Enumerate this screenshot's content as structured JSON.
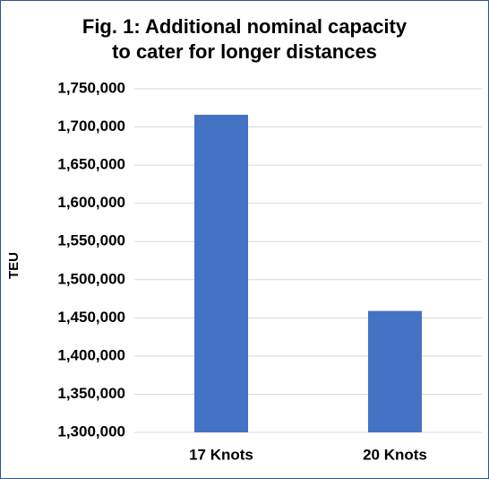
{
  "chart_data": {
    "type": "bar",
    "title": [
      "Fig. 1: Additional nominal capacity",
      "to cater for longer distances"
    ],
    "y_label": "TEU",
    "categories": [
      "17 Knots",
      "20 Knots"
    ],
    "values": [
      1716000,
      1459000
    ],
    "color": "#4472c4",
    "ylim": [
      1300000,
      1750000
    ],
    "yticks": [
      {
        "value": 1300000,
        "label": "1,300,000"
      },
      {
        "value": 1350000,
        "label": "1,350,000"
      },
      {
        "value": 1400000,
        "label": "1,400,000"
      },
      {
        "value": 1450000,
        "label": "1,450,000"
      },
      {
        "value": 1500000,
        "label": "1,500,000"
      },
      {
        "value": 1550000,
        "label": "1,550,000"
      },
      {
        "value": 1600000,
        "label": "1,600,000"
      },
      {
        "value": 1650000,
        "label": "1,650,000"
      },
      {
        "value": 1700000,
        "label": "1,700,000"
      },
      {
        "value": 1750000,
        "label": "1,750,000"
      }
    ],
    "grid": true
  }
}
